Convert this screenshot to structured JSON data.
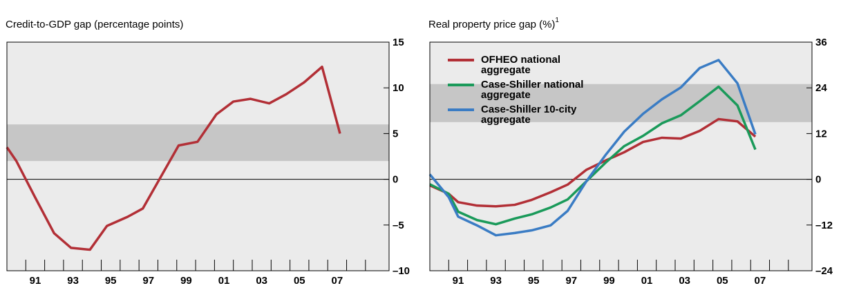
{
  "chart_data": [
    {
      "type": "line",
      "title": "Credit-to-GDP gap (percentage points)",
      "x": [
        1990,
        1990.5,
        1991.5,
        1992.5,
        1993.4,
        1994.4,
        1995.3,
        1996.4,
        1997.2,
        1999.1,
        2000.1,
        2001.1,
        2002.0,
        2002.9,
        2003.9,
        2004.8,
        2005.75,
        2006.7,
        2007.65
      ],
      "series": [
        {
          "name": null,
          "color": "#b22f36",
          "values": [
            3.5,
            2.0,
            -2.0,
            -5.9,
            -7.5,
            -7.7,
            -5.1,
            -4.1,
            -3.2,
            3.7,
            4.1,
            7.1,
            8.5,
            8.8,
            8.3,
            9.3,
            10.6,
            12.3,
            5.0
          ]
        }
      ],
      "band": [
        2,
        6
      ],
      "xlim": [
        1990,
        2010.25
      ],
      "xticks": [
        {
          "value": 1991.5,
          "label": "91"
        },
        {
          "value": 1993.5,
          "label": "93"
        },
        {
          "value": 1995.5,
          "label": "95"
        },
        {
          "value": 1997.5,
          "label": "97"
        },
        {
          "value": 1999.5,
          "label": "99"
        },
        {
          "value": 2001.5,
          "label": "01"
        },
        {
          "value": 2003.5,
          "label": "03"
        },
        {
          "value": 2005.5,
          "label": "05"
        },
        {
          "value": 2007.5,
          "label": "07"
        }
      ],
      "minor_xticks": [
        1991,
        1992,
        1993,
        1994,
        1995,
        1996,
        1997,
        1998,
        1999,
        2000,
        2001,
        2002,
        2003,
        2004,
        2005,
        2006,
        2007,
        2008,
        2009
      ],
      "ylim": [
        -10,
        15
      ],
      "yticks": [
        15,
        10,
        5,
        0,
        {
          "value": -5,
          "label": "–5"
        },
        {
          "value": -10,
          "label": "–10"
        }
      ]
    },
    {
      "type": "line",
      "title": "Real property price gap (%)",
      "footnote_mark": "1",
      "x": [
        1990,
        1991,
        1991.5,
        1992.5,
        1993.5,
        1994.5,
        1995.4,
        1996.4,
        1997.3,
        1998.3,
        1999.3,
        2000.3,
        2001.3,
        2002.3,
        2003.3,
        2004.3,
        2005.3,
        2006.3,
        2007.25
      ],
      "series": [
        {
          "name": "OFHEO national aggregate",
          "color": "#b22f36",
          "values": [
            -1.6,
            -3.8,
            -6.0,
            -6.9,
            -7.1,
            -6.7,
            -5.4,
            -3.4,
            -1.4,
            2.5,
            4.9,
            7.1,
            9.8,
            10.9,
            10.7,
            12.7,
            15.8,
            15.2,
            11.2
          ]
        },
        {
          "name": "Case-Shiller national aggregate",
          "color": "#1a9a5a",
          "values": [
            -1.3,
            -3.8,
            -8.5,
            -10.7,
            -11.8,
            -10.3,
            -9.2,
            -7.4,
            -5.3,
            -0.5,
            4.3,
            8.7,
            11.4,
            14.7,
            16.8,
            20.5,
            24.3,
            19.4,
            7.8
          ]
        },
        {
          "name": "Case-Shiller 10-city aggregate",
          "color": "#3a7cc4",
          "values": [
            1.3,
            -4.7,
            -9.8,
            -12.1,
            -14.7,
            -14.1,
            -13.4,
            -12.1,
            -8.3,
            -0.5,
            6.3,
            12.5,
            17.2,
            21.0,
            24.1,
            29.2,
            31.3,
            25.2,
            11.8
          ]
        }
      ],
      "band": [
        15,
        25
      ],
      "legend": "upper left",
      "xlim": [
        1990,
        2010.25
      ],
      "xticks": [
        {
          "value": 1991.5,
          "label": "91"
        },
        {
          "value": 1993.5,
          "label": "93"
        },
        {
          "value": 1995.5,
          "label": "95"
        },
        {
          "value": 1997.5,
          "label": "97"
        },
        {
          "value": 1999.5,
          "label": "99"
        },
        {
          "value": 2001.5,
          "label": "01"
        },
        {
          "value": 2003.5,
          "label": "03"
        },
        {
          "value": 2005.5,
          "label": "05"
        },
        {
          "value": 2007.5,
          "label": "07"
        }
      ],
      "minor_xticks": [
        1991,
        1992,
        1993,
        1994,
        1995,
        1996,
        1997,
        1998,
        1999,
        2000,
        2001,
        2002,
        2003,
        2004,
        2005,
        2006,
        2007,
        2008,
        2009
      ],
      "ylim": [
        -24,
        36
      ],
      "yticks": [
        36,
        24,
        12,
        0,
        {
          "value": -12,
          "label": "–12"
        },
        {
          "value": -24,
          "label": "–24"
        }
      ]
    }
  ]
}
